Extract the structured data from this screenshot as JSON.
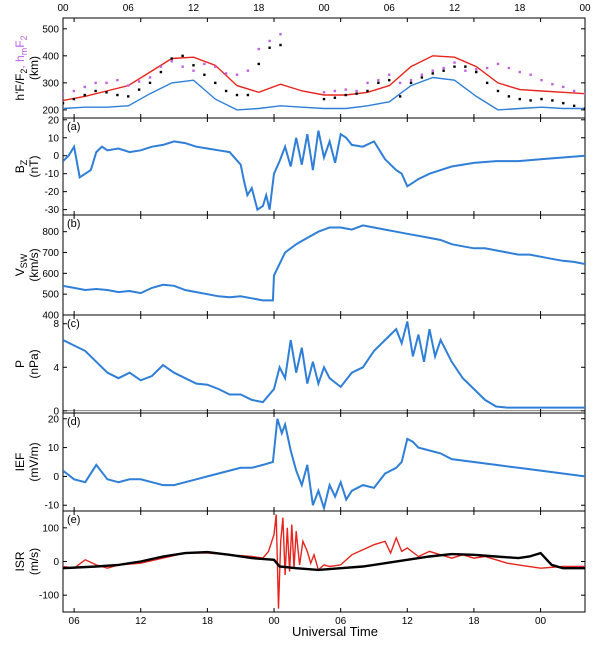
{
  "figure": {
    "xlabel": "Universal Time",
    "top_ticks": [
      "00",
      "06",
      "12",
      "18",
      "00",
      "06",
      "12",
      "18",
      "00"
    ],
    "bottom_ticks": [
      "06",
      "12",
      "18",
      "00",
      "06",
      "12",
      "18",
      "00"
    ]
  },
  "colors": {
    "blue": "#2f7fd8",
    "red": "#e8241c",
    "black": "#000000",
    "magenta": "#c060e0"
  },
  "chart_data": [
    {
      "type": "scatter",
      "panel": "ionosonde",
      "ylabel_parts": [
        "h'F/F",
        "2",
        ", h",
        "m",
        "F",
        "2"
      ],
      "yunit": "(km)",
      "ylim": [
        170,
        540
      ],
      "yticks": [
        "200",
        "300",
        "400",
        "500"
      ],
      "xrange_hours": [
        0,
        48
      ],
      "series": [
        {
          "style": "line-red",
          "x": [
            0,
            2,
            4,
            6,
            8,
            10,
            12,
            14,
            16,
            18,
            20,
            22,
            24,
            26,
            28,
            30,
            32,
            34,
            36,
            38,
            40,
            42,
            44,
            46,
            48
          ],
          "y": [
            235,
            250,
            270,
            290,
            340,
            390,
            395,
            365,
            290,
            265,
            295,
            270,
            255,
            255,
            265,
            290,
            360,
            400,
            395,
            360,
            300,
            275,
            270,
            265,
            260
          ]
        },
        {
          "style": "line-blue",
          "x": [
            0,
            2,
            4,
            6,
            8,
            10,
            12,
            14,
            16,
            18,
            20,
            22,
            24,
            26,
            28,
            30,
            32,
            34,
            36,
            38,
            40,
            42,
            44,
            46,
            48
          ],
          "y": [
            205,
            210,
            210,
            215,
            260,
            300,
            310,
            240,
            200,
            205,
            215,
            210,
            205,
            205,
            215,
            230,
            290,
            320,
            310,
            250,
            200,
            205,
            210,
            205,
            205
          ]
        },
        {
          "style": "dots-magenta",
          "x": [
            0,
            1,
            2,
            3,
            4,
            5,
            6,
            7,
            8,
            9,
            10,
            11,
            12,
            13,
            14,
            15,
            16,
            17,
            18,
            19,
            20,
            24,
            25,
            26,
            27,
            28,
            29,
            30,
            31,
            32,
            33,
            34,
            35,
            36,
            37,
            38,
            39,
            40,
            41,
            42,
            43,
            44,
            45,
            46,
            47,
            48
          ],
          "y": [
            260,
            270,
            285,
            300,
            300,
            310,
            290,
            305,
            320,
            360,
            380,
            360,
            345,
            370,
            360,
            335,
            330,
            345,
            425,
            455,
            480,
            265,
            270,
            275,
            270,
            300,
            310,
            330,
            300,
            310,
            330,
            345,
            355,
            375,
            345,
            350,
            355,
            370,
            355,
            340,
            330,
            310,
            295,
            285,
            270,
            260
          ]
        },
        {
          "style": "dots-black",
          "x": [
            0,
            1,
            2,
            3,
            4,
            5,
            6,
            7,
            8,
            9,
            10,
            11,
            12,
            13,
            14,
            15,
            16,
            17,
            18,
            19,
            20,
            24,
            25,
            26,
            27,
            28,
            29,
            30,
            31,
            32,
            33,
            34,
            35,
            36,
            37,
            38,
            39,
            40,
            41,
            42,
            43,
            44,
            45,
            46,
            47,
            48
          ],
          "y": [
            225,
            240,
            255,
            270,
            265,
            255,
            250,
            275,
            300,
            340,
            390,
            400,
            365,
            330,
            300,
            270,
            255,
            255,
            370,
            430,
            440,
            240,
            245,
            255,
            260,
            270,
            300,
            310,
            250,
            300,
            320,
            335,
            345,
            360,
            360,
            340,
            300,
            270,
            250,
            240,
            235,
            240,
            235,
            225,
            215,
            205
          ]
        }
      ]
    },
    {
      "type": "line",
      "panel": "a",
      "label": "(a)",
      "ylabel": "B",
      "ylabel_sub": "Z",
      "yunit": "(nT)",
      "ylim": [
        -33,
        21
      ],
      "yticks": [
        "20",
        "10",
        "0",
        "-10",
        "-20",
        "-30"
      ],
      "xrange_hours": [
        5,
        52
      ],
      "x": [
        5,
        5.5,
        6,
        6.5,
        7,
        7.5,
        8,
        8.5,
        9,
        10,
        11,
        12,
        13,
        14,
        15,
        16,
        17,
        18,
        19,
        20,
        21,
        21.3,
        21.6,
        22,
        22.5,
        23,
        23.3,
        23.6,
        24,
        24.5,
        25,
        25.5,
        26,
        26.5,
        27,
        27.5,
        28,
        28.5,
        29,
        29.5,
        30,
        30.5,
        31,
        32,
        33,
        34,
        35,
        35.5,
        36,
        36.5,
        37,
        38,
        39,
        40,
        42,
        44,
        46,
        48,
        50,
        52
      ],
      "y": [
        -3,
        0,
        5,
        -12,
        -10,
        -8,
        2,
        5,
        3,
        4,
        2,
        3,
        5,
        6,
        8,
        7,
        5,
        4,
        3,
        2,
        -5,
        -14,
        -22,
        -18,
        -30,
        -28,
        -22,
        -30,
        -10,
        -3,
        5,
        -6,
        10,
        -5,
        12,
        -8,
        14,
        -1,
        8,
        -4,
        12,
        10,
        6,
        5,
        8,
        -2,
        -8,
        -10,
        -17,
        -15,
        -13,
        -10,
        -8,
        -6,
        -4,
        -3,
        -3,
        -2,
        -1,
        0
      ]
    },
    {
      "type": "line",
      "panel": "b",
      "label": "(b)",
      "ylabel": "V",
      "ylabel_sub": "SW",
      "yunit": "(km/s)",
      "ylim": [
        400,
        880
      ],
      "yticks": [
        "800",
        "700",
        "600",
        "500",
        "400"
      ],
      "xrange_hours": [
        5,
        52
      ],
      "x": [
        5,
        6,
        7,
        8,
        9,
        10,
        11,
        12,
        13,
        14,
        15,
        16,
        17,
        18,
        19,
        20,
        21,
        22,
        23,
        23.9,
        24,
        25,
        26,
        27,
        28,
        29,
        30,
        31,
        32,
        33,
        34,
        35,
        36,
        37,
        38,
        39,
        40,
        41,
        42,
        43,
        44,
        45,
        46,
        47,
        48,
        49,
        50,
        51,
        52
      ],
      "y": [
        540,
        530,
        520,
        525,
        520,
        510,
        515,
        505,
        530,
        545,
        540,
        520,
        510,
        500,
        490,
        485,
        490,
        480,
        470,
        470,
        590,
        700,
        740,
        770,
        800,
        820,
        820,
        810,
        830,
        820,
        810,
        800,
        790,
        780,
        770,
        760,
        740,
        730,
        720,
        720,
        710,
        700,
        690,
        690,
        680,
        670,
        660,
        655,
        645
      ]
    },
    {
      "type": "line",
      "panel": "c",
      "label": "(c)",
      "ylabel": "P",
      "yunit": "(nPa)",
      "ylim": [
        -0.2,
        8.8
      ],
      "yticks": [
        "8",
        "4",
        "0"
      ],
      "xrange_hours": [
        5,
        52
      ],
      "x": [
        5,
        6,
        7,
        8,
        9,
        10,
        11,
        12,
        13,
        14,
        15,
        16,
        17,
        18,
        19,
        20,
        21,
        22,
        23,
        24,
        24.5,
        25,
        25.5,
        26,
        26.5,
        27,
        27.5,
        28,
        28.5,
        29,
        30,
        31,
        32,
        33,
        34,
        35,
        35.5,
        36,
        36.5,
        37,
        37.5,
        38,
        38.5,
        39,
        40,
        41,
        42,
        43,
        44,
        45,
        46,
        48,
        50,
        52
      ],
      "y": [
        6.5,
        6,
        5.5,
        4.5,
        3.5,
        3,
        3.5,
        2.8,
        3.2,
        4.2,
        3.5,
        3,
        2.5,
        2.4,
        2,
        1.5,
        1.5,
        1,
        0.8,
        2,
        4,
        3,
        6.5,
        3.5,
        5.8,
        2.5,
        4.5,
        2.5,
        4,
        3,
        2.2,
        3.5,
        4,
        5.5,
        6.5,
        7.5,
        6.2,
        8.2,
        5,
        7,
        4.5,
        7.5,
        5,
        6.5,
        4.5,
        3,
        2,
        1,
        0.4,
        0.3,
        0.3,
        0.3,
        0.3,
        0.3
      ]
    },
    {
      "type": "line",
      "panel": "d",
      "label": "(d)",
      "ylabel": "IEF",
      "yunit": "(mV/m)",
      "ylim": [
        -12,
        22
      ],
      "yticks": [
        "20",
        "10",
        "0",
        "-10"
      ],
      "xrange_hours": [
        5,
        52
      ],
      "x": [
        5,
        6,
        7,
        8,
        9,
        10,
        11,
        12,
        13,
        14,
        15,
        16,
        17,
        18,
        19,
        20,
        21,
        22,
        23,
        23.9,
        24.3,
        24.7,
        25,
        25.5,
        26,
        26.5,
        27,
        27.5,
        28,
        28.5,
        29,
        29.5,
        30,
        30.5,
        31,
        32,
        33,
        34,
        35,
        35.5,
        36,
        36.5,
        37,
        38,
        39,
        40,
        42,
        44,
        46,
        48,
        50,
        52
      ],
      "y": [
        2,
        -1,
        -2,
        4,
        -1,
        -2,
        -1,
        -1,
        -2,
        -3,
        -3,
        -2,
        -1,
        0,
        1,
        2,
        3,
        3,
        4,
        5,
        20,
        15,
        18,
        9,
        2,
        -3,
        4,
        -10,
        -5,
        -11,
        -3,
        -7,
        -2,
        -8,
        -5,
        -3,
        -4,
        1,
        3,
        5,
        13,
        12,
        10,
        9,
        8,
        6,
        5,
        4,
        3,
        2,
        1,
        0
      ]
    },
    {
      "type": "line",
      "panel": "e",
      "label": "(e)",
      "ylabel": "ISR",
      "yunit": "(m/s)",
      "ylim": [
        -150,
        150
      ],
      "yticks": [
        "100",
        "0",
        "-100"
      ],
      "xrange_hours": [
        5,
        52
      ],
      "series": [
        {
          "style": "line-red",
          "x": [
            5,
            6,
            7,
            8,
            9,
            10,
            12,
            14,
            16,
            18,
            20,
            22,
            23,
            23.5,
            24,
            24.2,
            24.4,
            24.6,
            24.8,
            25,
            25.2,
            25.4,
            25.6,
            25.8,
            26,
            26.3,
            26.6,
            27,
            27.3,
            27.6,
            28,
            28.5,
            29,
            30,
            31,
            32,
            33,
            34,
            34.5,
            35,
            35.5,
            36,
            37,
            38,
            39,
            40,
            41,
            42,
            43,
            44,
            45,
            46,
            48,
            50,
            52
          ],
          "y": [
            -15,
            -20,
            5,
            -10,
            -20,
            -10,
            -5,
            10,
            25,
            25,
            20,
            15,
            10,
            30,
            80,
            140,
            -140,
            60,
            130,
            -40,
            100,
            -30,
            110,
            -20,
            90,
            -10,
            60,
            30,
            -5,
            20,
            -25,
            -10,
            -15,
            -10,
            20,
            35,
            50,
            60,
            25,
            70,
            30,
            40,
            15,
            30,
            20,
            10,
            20,
            10,
            15,
            5,
            -5,
            -10,
            -20,
            -15,
            -15
          ]
        },
        {
          "style": "line-black",
          "x": [
            5,
            8,
            10,
            12,
            14,
            16,
            18,
            20,
            22,
            24,
            24.5,
            26,
            28,
            30,
            32,
            34,
            36,
            38,
            40,
            42,
            44,
            46,
            47,
            48,
            49,
            50,
            52
          ],
          "y": [
            -20,
            -15,
            -10,
            0,
            15,
            25,
            28,
            20,
            10,
            5,
            -15,
            -20,
            -25,
            -20,
            -15,
            -5,
            5,
            15,
            22,
            20,
            15,
            10,
            15,
            25,
            -10,
            -20,
            -20
          ]
        }
      ],
      "xticks": [
        "06",
        "12",
        "18",
        "00",
        "06",
        "12",
        "18",
        "00"
      ]
    }
  ]
}
